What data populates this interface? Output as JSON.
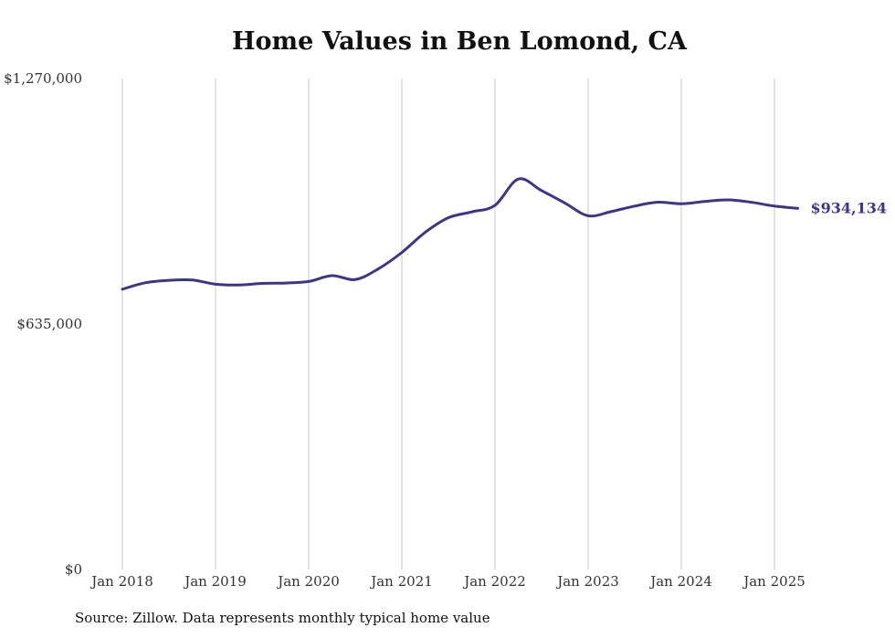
{
  "chart_data": {
    "type": "line",
    "title": "Home Values in Ben Lomond, CA",
    "xlabel": "",
    "ylabel": "",
    "ylim": [
      0,
      1270000
    ],
    "y_ticks": [
      {
        "value": 0,
        "label": "$0"
      },
      {
        "value": 635000,
        "label": "$635,000"
      },
      {
        "value": 1270000,
        "label": "$1,270,000"
      }
    ],
    "x_ticks": [
      {
        "value": "2018-01",
        "label": "Jan 2018"
      },
      {
        "value": "2019-01",
        "label": "Jan 2019"
      },
      {
        "value": "2020-01",
        "label": "Jan 2020"
      },
      {
        "value": "2021-01",
        "label": "Jan 2021"
      },
      {
        "value": "2022-01",
        "label": "Jan 2022"
      },
      {
        "value": "2023-01",
        "label": "Jan 2023"
      },
      {
        "value": "2024-01",
        "label": "Jan 2024"
      },
      {
        "value": "2025-01",
        "label": "Jan 2025"
      }
    ],
    "grid": {
      "vertical": true,
      "horizontal": false
    },
    "series": [
      {
        "color": "#3d3589",
        "end_label": "$934,134",
        "x": [
          "2018-01",
          "2018-04",
          "2018-07",
          "2018-10",
          "2019-01",
          "2019-04",
          "2019-07",
          "2019-10",
          "2020-01",
          "2020-04",
          "2020-07",
          "2020-10",
          "2021-01",
          "2021-04",
          "2021-07",
          "2021-10",
          "2022-01",
          "2022-04",
          "2022-07",
          "2022-10",
          "2023-01",
          "2023-04",
          "2023-07",
          "2023-10",
          "2024-01",
          "2024-04",
          "2024-07",
          "2024-10",
          "2025-01",
          "2025-04"
        ],
        "values": [
          725000,
          742000,
          748000,
          749000,
          738000,
          736000,
          740000,
          741000,
          745000,
          760000,
          750000,
          778000,
          820000,
          872000,
          910000,
          925000,
          942000,
          1010000,
          980000,
          948000,
          915000,
          926000,
          940000,
          950000,
          946000,
          952000,
          956000,
          950000,
          940000,
          934134
        ]
      }
    ]
  },
  "footer": {
    "source": "Source: Zillow. Data represents monthly typical home value"
  }
}
